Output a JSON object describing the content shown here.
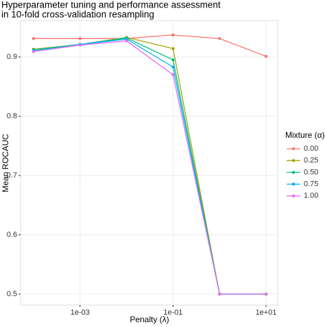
{
  "chart_data": {
    "type": "line",
    "title": [
      "Hyperparameter tuning and performance assessment",
      " in 10-fold cross-validation resampling"
    ],
    "x_label": "Penalty (λ)",
    "y_label": "Mean ROCAUC",
    "legend_title": "Mixture (α)",
    "legend": "right",
    "x_scale": "log",
    "x": [
      0.0001,
      0.001,
      0.01,
      0.1,
      1,
      10
    ],
    "series": [
      {
        "name": "0.00",
        "color": "#F8766D",
        "values": [
          0.931,
          0.931,
          0.931,
          0.937,
          0.931,
          0.901
        ]
      },
      {
        "name": "0.25",
        "color": "#A3A500",
        "values": [
          0.913,
          0.921,
          0.933,
          0.914,
          0.5,
          0.5
        ]
      },
      {
        "name": "0.50",
        "color": "#00BF7D",
        "values": [
          0.912,
          0.921,
          0.932,
          0.895,
          0.5,
          0.5
        ]
      },
      {
        "name": "0.75",
        "color": "#00B0F6",
        "values": [
          0.91,
          0.921,
          0.93,
          0.883,
          0.5,
          0.5
        ]
      },
      {
        "name": "1.00",
        "color": "#E76BF3",
        "values": [
          0.909,
          0.92,
          0.927,
          0.87,
          0.5,
          0.5
        ]
      }
    ],
    "xlim": [
      5.25e-05,
      17.8
    ],
    "xticks": [
      {
        "value": 0.001,
        "label": "1e-03"
      },
      {
        "value": 0.1,
        "label": "1e-01"
      },
      {
        "value": 10,
        "label": "1e+01"
      }
    ],
    "ylim": [
      0.4815,
      0.9613
    ],
    "yticks": [
      0.5,
      0.6,
      0.7,
      0.8,
      0.9
    ],
    "grid": true
  }
}
